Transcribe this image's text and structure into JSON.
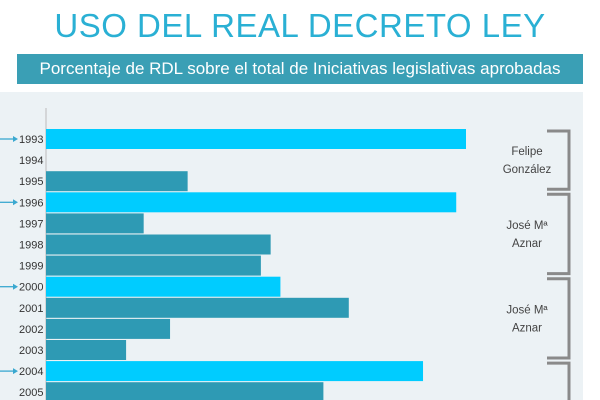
{
  "header": {
    "title": "USO DEL REAL DECRETO LEY",
    "subtitle": "Porcentaje de RDL sobre el total de Iniciativas legislativas aprobadas"
  },
  "colors": {
    "title": "#2ab0d4",
    "band": "#3a9fb5",
    "panel": "#ecf2f5",
    "highlight_bar": "#00ccff",
    "normal_bar": "#2e9ab4",
    "bracket": "#8a8a8a",
    "arrow": "#3aa8d0"
  },
  "chart_data": {
    "type": "bar",
    "orientation": "horizontal",
    "title": "Porcentaje de RDL sobre el total de Iniciativas legislativas aprobadas",
    "categories": [
      "1993",
      "1994",
      "1995",
      "1996",
      "1997",
      "1998",
      "1999",
      "2000",
      "2001",
      "2002",
      "2003",
      "2004",
      "2005"
    ],
    "values": [
      43,
      0,
      14.5,
      42,
      10,
      23,
      22,
      24,
      31,
      12.7,
      8.2,
      38.6,
      28.4
    ],
    "highlighted": [
      "1993",
      "1996",
      "2000",
      "2004"
    ],
    "xlim": [
      0,
      55
    ],
    "grid": false,
    "eras": [
      {
        "label_lines": [
          "Felipe",
          "González"
        ],
        "from": "1993",
        "to": "1995"
      },
      {
        "label_lines": [
          "José Mª",
          "Aznar"
        ],
        "from": "1996",
        "to": "1999"
      },
      {
        "label_lines": [
          "José Mª",
          "Aznar"
        ],
        "from": "2000",
        "to": "2003"
      },
      {
        "label_lines": [],
        "from": "2004",
        "to": "2005"
      }
    ]
  }
}
